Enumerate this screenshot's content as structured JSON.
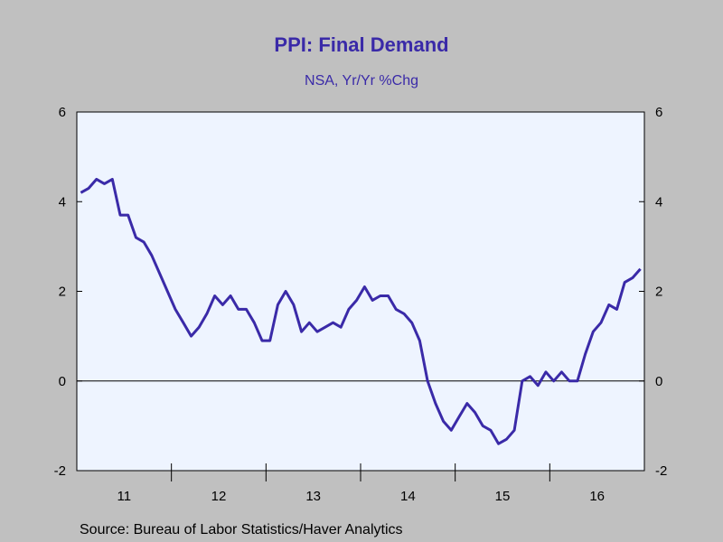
{
  "chart_data": {
    "type": "line",
    "title": "PPI: Final Demand",
    "subtitle": "NSA, Yr/Yr %Chg",
    "source": "Source:  Bureau of Labor Statistics/Haver Analytics",
    "x_tick_labels": [
      "11",
      "12",
      "13",
      "14",
      "15",
      "16"
    ],
    "y_ticks": [
      6,
      4,
      2,
      0,
      -2
    ],
    "y_tick_labels": [
      "6",
      "4",
      "2",
      "0",
      "-2"
    ],
    "ylim": [
      -2,
      6
    ],
    "x_start": "2011-01",
    "x_end": "2016-12",
    "grid": false,
    "zero_line": true,
    "colors": {
      "line": "#3a2aa8",
      "plot_bg": "#eef4ff",
      "page_bg": "#c0c0c0",
      "title": "#3a2aa8"
    },
    "series": [
      {
        "months": [
          "2011-01",
          "2011-02",
          "2011-03",
          "2011-04",
          "2011-05",
          "2011-06",
          "2011-07",
          "2011-08",
          "2011-09",
          "2011-10",
          "2011-11",
          "2011-12",
          "2012-01",
          "2012-02",
          "2012-03",
          "2012-04",
          "2012-05",
          "2012-06",
          "2012-07",
          "2012-08",
          "2012-09",
          "2012-10",
          "2012-11",
          "2012-12",
          "2013-01",
          "2013-02",
          "2013-03",
          "2013-04",
          "2013-05",
          "2013-06",
          "2013-07",
          "2013-08",
          "2013-09",
          "2013-10",
          "2013-11",
          "2013-12",
          "2014-01",
          "2014-02",
          "2014-03",
          "2014-04",
          "2014-05",
          "2014-06",
          "2014-07",
          "2014-08",
          "2014-09",
          "2014-10",
          "2014-11",
          "2014-12",
          "2015-01",
          "2015-02",
          "2015-03",
          "2015-04",
          "2015-05",
          "2015-06",
          "2015-07",
          "2015-08",
          "2015-09",
          "2015-10",
          "2015-11",
          "2015-12",
          "2016-01",
          "2016-02",
          "2016-03",
          "2016-04",
          "2016-05",
          "2016-06",
          "2016-07",
          "2016-08",
          "2016-09",
          "2016-10",
          "2016-11",
          "2016-12"
        ],
        "values": [
          4.2,
          4.3,
          4.5,
          4.4,
          4.5,
          3.7,
          3.7,
          3.2,
          3.1,
          2.8,
          2.4,
          2.0,
          1.6,
          1.3,
          1.0,
          1.2,
          1.5,
          1.9,
          1.7,
          1.9,
          1.6,
          1.6,
          1.3,
          0.9,
          0.9,
          1.7,
          2.0,
          1.7,
          1.1,
          1.3,
          1.1,
          1.2,
          1.3,
          1.2,
          1.6,
          1.8,
          2.1,
          1.8,
          1.9,
          1.9,
          1.6,
          1.5,
          1.3,
          0.9,
          0.0,
          -0.5,
          -0.9,
          -1.1,
          -0.8,
          -0.5,
          -0.7,
          -1.0,
          -1.1,
          -1.4,
          -1.3,
          -1.1,
          0.0,
          0.1,
          -0.1,
          0.2,
          0.0,
          0.2,
          0.0,
          0.0,
          0.6,
          1.1,
          1.3,
          1.7,
          1.6,
          2.2,
          2.3,
          2.5
        ]
      }
    ]
  }
}
